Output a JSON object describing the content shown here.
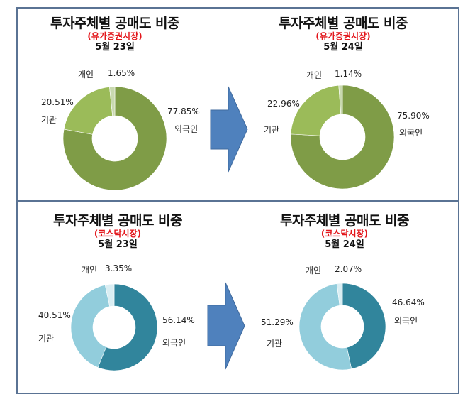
{
  "colors": {
    "kospi": {
      "foreign": "#7F9C47",
      "institution": "#9BBB59",
      "individual": "#C9D9B0"
    },
    "kosdaq": {
      "foreign": "#31859C",
      "institution": "#92CDDC",
      "individual": "#DAEEF3"
    },
    "arrow": "#4F81BD",
    "border": "#5A7394",
    "market_label": "#E3161B"
  },
  "panels": [
    {
      "title": "투자주체별 공매도 비중",
      "market": "(유가증권시장)",
      "date": "5월 23일",
      "labels": {
        "individual": "개인",
        "individual_pct": "1.65%",
        "institution": "기관",
        "institution_pct": "20.51%",
        "foreign": "외국인",
        "foreign_pct": "77.85%"
      }
    },
    {
      "title": "투자주체별 공매도 비중",
      "market": "(유가증권시장)",
      "date": "5월 24일",
      "labels": {
        "individual": "개인",
        "individual_pct": "1.14%",
        "institution": "기관",
        "institution_pct": "22.96%",
        "foreign": "외국인",
        "foreign_pct": "75.90%"
      }
    },
    {
      "title": "투자주체별 공매도 비중",
      "market": "(코스닥시장)",
      "date": "5월 23일",
      "labels": {
        "individual": "개인",
        "individual_pct": "3.35%",
        "institution": "기관",
        "institution_pct": "40.51%",
        "foreign": "외국인",
        "foreign_pct": "56.14%"
      }
    },
    {
      "title": "투자주체별 공매도 비중",
      "market": "(코스닥시장)",
      "date": "5월 24일",
      "labels": {
        "individual": "개인",
        "individual_pct": "2.07%",
        "institution": "기관",
        "institution_pct": "51.29%",
        "foreign": "외국인",
        "foreign_pct": "46.64%"
      }
    }
  ],
  "chart_data": [
    {
      "type": "pie",
      "donut": true,
      "title": "투자주체별 공매도 비중 (유가증권시장) 5월 23일",
      "categories": [
        "외국인",
        "기관",
        "개인"
      ],
      "values": [
        77.85,
        20.51,
        1.65
      ],
      "unit": "%"
    },
    {
      "type": "pie",
      "donut": true,
      "title": "투자주체별 공매도 비중 (유가증권시장) 5월 24일",
      "categories": [
        "외국인",
        "기관",
        "개인"
      ],
      "values": [
        75.9,
        22.96,
        1.14
      ],
      "unit": "%"
    },
    {
      "type": "pie",
      "donut": true,
      "title": "투자주체별 공매도 비중 (코스닥시장) 5월 23일",
      "categories": [
        "외국인",
        "기관",
        "개인"
      ],
      "values": [
        56.14,
        40.51,
        3.35
      ],
      "unit": "%"
    },
    {
      "type": "pie",
      "donut": true,
      "title": "투자주체별 공매도 비중 (코스닥시장) 5월 24일",
      "categories": [
        "외국인",
        "기관",
        "개인"
      ],
      "values": [
        46.64,
        51.29,
        2.07
      ],
      "unit": "%"
    }
  ]
}
